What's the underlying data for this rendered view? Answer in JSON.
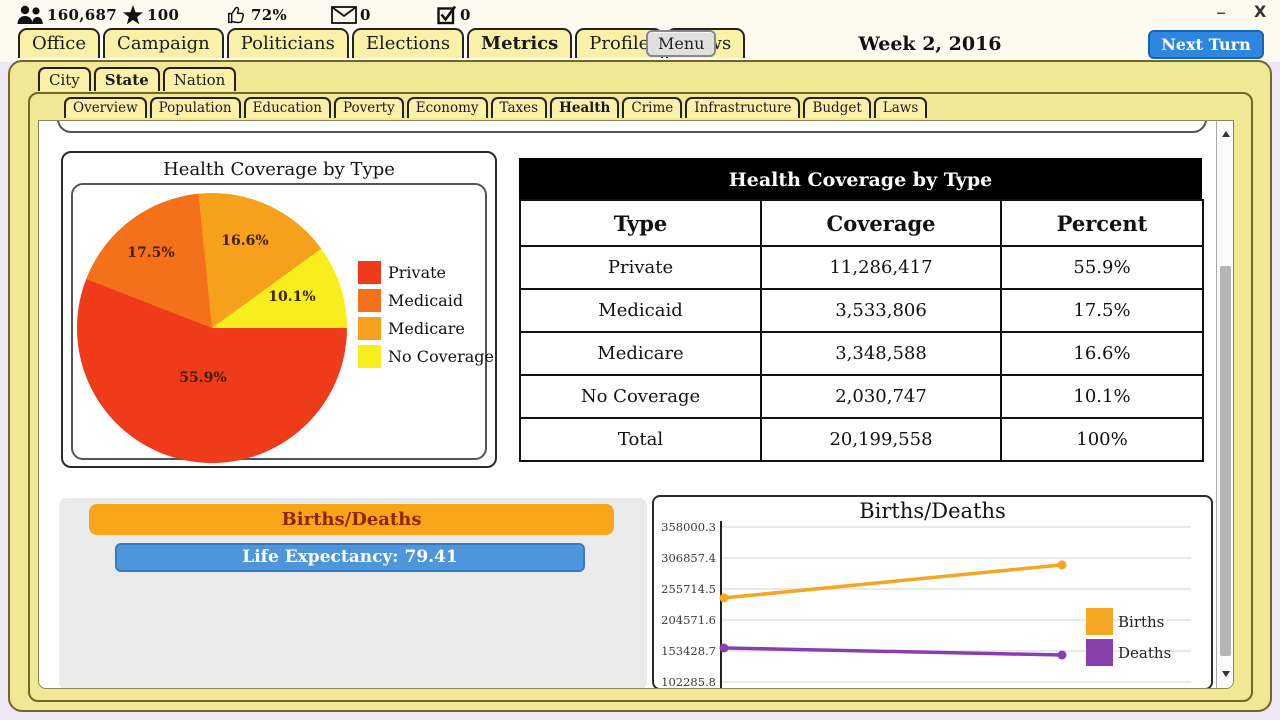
{
  "window": {
    "minimize": "–",
    "close": "X"
  },
  "stats_bar": {
    "items": [
      {
        "icon": "population-icon",
        "value": "160,687"
      },
      {
        "icon": "star-icon",
        "value": "100"
      },
      {
        "icon": "thumbs-up-icon",
        "value": "72%"
      },
      {
        "icon": "mail-icon",
        "value": "0"
      },
      {
        "icon": "tasks-icon",
        "value": "0"
      }
    ]
  },
  "top_nav": {
    "tabs": [
      "Office",
      "Campaign",
      "Politicians",
      "Elections",
      "Metrics",
      "Profile",
      "News"
    ],
    "active_tab": "Metrics",
    "menu_label": "Menu",
    "date": "Week 2, 2016",
    "next_turn_label": "Next Turn"
  },
  "region_tabs": {
    "items": [
      "City",
      "State",
      "Nation"
    ],
    "active": "State"
  },
  "metric_tabs": {
    "items": [
      "Overview",
      "Population",
      "Education",
      "Poverty",
      "Economy",
      "Taxes",
      "Health",
      "Crime",
      "Infrastructure",
      "Budget",
      "Laws"
    ],
    "active": "Health"
  },
  "pie_panel": {
    "title": "Health Coverage by Type"
  },
  "coverage_table": {
    "title": "Health Coverage by Type",
    "columns": [
      "Type",
      "Coverage",
      "Percent"
    ],
    "rows": [
      [
        "Private",
        "11,286,417",
        "55.9%"
      ],
      [
        "Medicaid",
        "3,533,806",
        "17.5%"
      ],
      [
        "Medicare",
        "3,348,588",
        "16.6%"
      ],
      [
        "No Coverage",
        "2,030,747",
        "10.1%"
      ],
      [
        "Total",
        "20,199,558",
        "100%"
      ]
    ]
  },
  "births_deaths_panel": {
    "header_label": "Births/Deaths",
    "life_expectancy_label": "Life Expectancy: 79.41"
  },
  "line_panel": {
    "title": "Births/Deaths"
  },
  "chart_data": [
    {
      "type": "pie",
      "title": "Health Coverage by Type",
      "labels": [
        "Private",
        "Medicaid",
        "Medicare",
        "No Coverage"
      ],
      "values": [
        55.9,
        17.5,
        16.6,
        10.1
      ],
      "colors": [
        "#EE3B1A",
        "#F4701A",
        "#F7A01B",
        "#F8EE1D"
      ],
      "slice_labels": [
        "55.9%",
        "17.5%",
        "16.6%",
        "10.1%"
      ],
      "legend_position": "right"
    },
    {
      "type": "line",
      "title": "Births/Deaths",
      "x": [
        1,
        2
      ],
      "series": [
        {
          "name": "Births",
          "color": "#F5A623",
          "values": [
            241000,
            295500
          ]
        },
        {
          "name": "Deaths",
          "color": "#8B3FAE",
          "values": [
            158400,
            146800
          ]
        }
      ],
      "y_ticks": [
        "358000.3",
        "306857.4",
        "255714.5",
        "204571.6",
        "153428.7",
        "102285.8"
      ],
      "ylim": [
        102285.8,
        358000.3
      ],
      "grid": true,
      "legend_position": "right"
    }
  ],
  "colors": {
    "frame_yellow": "#F2E795",
    "tab_yellow": "#FAF0A8",
    "next_turn_blue": "#2E86E0",
    "births_bar_orange": "#F9A51A",
    "life_bar_blue": "#4E96DB",
    "table_header_bg": "#000000"
  }
}
